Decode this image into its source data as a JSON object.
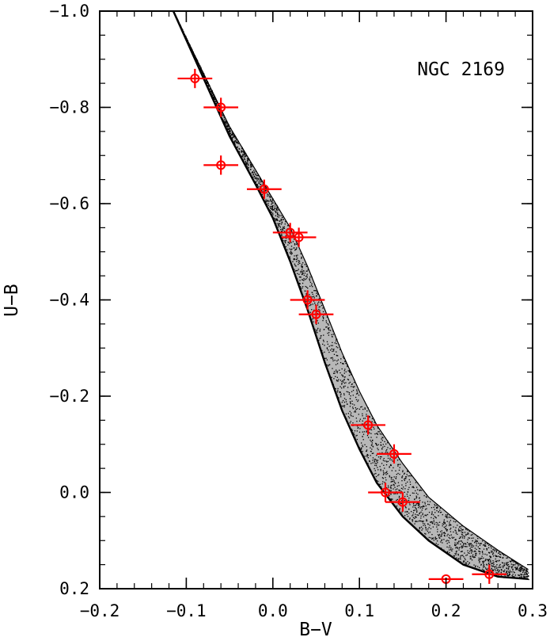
{
  "chart_data": {
    "type": "scatter",
    "title": "",
    "xlabel": "B−V",
    "ylabel": "U−B",
    "xlim": [
      -0.2,
      0.3
    ],
    "ylim": [
      0.2,
      -1.0
    ],
    "y_inverted": true,
    "grid": false,
    "xticks": [
      -0.2,
      -0.1,
      0.0,
      0.1,
      0.2,
      0.3
    ],
    "xtick_labels": [
      "−0.2",
      "−0.1",
      "0.0",
      "0.1",
      "0.2",
      "0.3"
    ],
    "yticks": [
      -1.0,
      -0.8,
      -0.6,
      -0.4,
      -0.2,
      0.0,
      0.2
    ],
    "ytick_labels": [
      "−1.0",
      "−0.8",
      "−0.6",
      "−0.4",
      "−0.2",
      "0.0",
      "0.2"
    ],
    "annotations": [
      {
        "text": "NGC 2169",
        "position": "top-right"
      }
    ],
    "model_band": {
      "style": "black dotted band",
      "color": "#000000",
      "lower_edge": [
        {
          "x": -0.115,
          "y": -1.0
        },
        {
          "x": -0.08,
          "y": -0.86
        },
        {
          "x": -0.05,
          "y": -0.74
        },
        {
          "x": -0.02,
          "y": -0.64
        },
        {
          "x": 0.0,
          "y": -0.57
        },
        {
          "x": 0.02,
          "y": -0.48
        },
        {
          "x": 0.04,
          "y": -0.38
        },
        {
          "x": 0.06,
          "y": -0.27
        },
        {
          "x": 0.08,
          "y": -0.17
        },
        {
          "x": 0.1,
          "y": -0.09
        },
        {
          "x": 0.12,
          "y": -0.02
        },
        {
          "x": 0.15,
          "y": 0.05
        },
        {
          "x": 0.18,
          "y": 0.1
        },
        {
          "x": 0.22,
          "y": 0.15
        },
        {
          "x": 0.26,
          "y": 0.175
        },
        {
          "x": 0.295,
          "y": 0.18
        }
      ],
      "upper_edge": [
        {
          "x": -0.115,
          "y": -1.0
        },
        {
          "x": -0.08,
          "y": -0.87
        },
        {
          "x": -0.05,
          "y": -0.76
        },
        {
          "x": -0.02,
          "y": -0.67
        },
        {
          "x": 0.0,
          "y": -0.61
        },
        {
          "x": 0.02,
          "y": -0.55
        },
        {
          "x": 0.04,
          "y": -0.47
        },
        {
          "x": 0.06,
          "y": -0.38
        },
        {
          "x": 0.08,
          "y": -0.29
        },
        {
          "x": 0.1,
          "y": -0.21
        },
        {
          "x": 0.12,
          "y": -0.14
        },
        {
          "x": 0.15,
          "y": -0.06
        },
        {
          "x": 0.18,
          "y": 0.01
        },
        {
          "x": 0.22,
          "y": 0.07
        },
        {
          "x": 0.26,
          "y": 0.12
        },
        {
          "x": 0.295,
          "y": 0.16
        }
      ]
    },
    "series": [
      {
        "color": "#ff0000",
        "marker": "open circle with error bars",
        "points": [
          {
            "x": -0.09,
            "y": -0.86,
            "xerr": 0.02,
            "yerr": 0.02
          },
          {
            "x": -0.06,
            "y": -0.8,
            "xerr": 0.02,
            "yerr": 0.02
          },
          {
            "x": -0.06,
            "y": -0.68,
            "xerr": 0.02,
            "yerr": 0.02
          },
          {
            "x": -0.01,
            "y": -0.63,
            "xerr": 0.02,
            "yerr": 0.02
          },
          {
            "x": 0.02,
            "y": -0.54,
            "xerr": 0.02,
            "yerr": 0.02
          },
          {
            "x": 0.03,
            "y": -0.53,
            "xerr": 0.02,
            "yerr": 0.02
          },
          {
            "x": 0.04,
            "y": -0.4,
            "xerr": 0.02,
            "yerr": 0.02
          },
          {
            "x": 0.05,
            "y": -0.37,
            "xerr": 0.02,
            "yerr": 0.02
          },
          {
            "x": 0.11,
            "y": -0.14,
            "xerr": 0.02,
            "yerr": 0.02
          },
          {
            "x": 0.14,
            "y": -0.08,
            "xerr": 0.02,
            "yerr": 0.02
          },
          {
            "x": 0.13,
            "y": 0.0,
            "xerr": 0.02,
            "yerr": 0.02
          },
          {
            "x": 0.15,
            "y": 0.02,
            "xerr": 0.02,
            "yerr": 0.02
          },
          {
            "x": 0.2,
            "y": 0.18,
            "xerr": 0.02,
            "yerr": 0.0
          },
          {
            "x": 0.25,
            "y": 0.17,
            "xerr": 0.02,
            "yerr": 0.02
          }
        ]
      }
    ]
  }
}
